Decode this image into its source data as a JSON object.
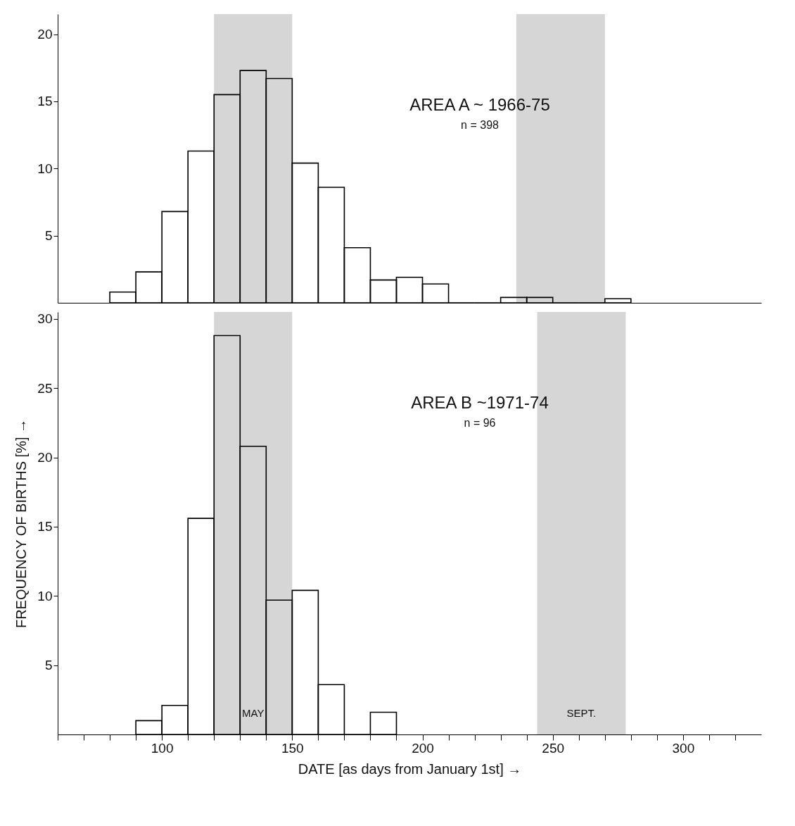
{
  "chart_data": [
    {
      "type": "histogram",
      "color": "#000000",
      "bins": [
        80,
        90,
        100,
        110,
        120,
        130,
        140,
        150,
        160,
        170,
        180,
        190,
        200,
        210,
        220,
        230,
        240,
        250,
        260,
        270,
        280
      ],
      "values": [
        0.8,
        2.3,
        6.8,
        11.3,
        15.5,
        17.3,
        16.7,
        10.4,
        8.6,
        4.1,
        1.7,
        1.9,
        1.4,
        0,
        0,
        0.4,
        0.4,
        0,
        0,
        0.3
      ],
      "xlim": [
        60,
        330
      ],
      "ylim": [
        0,
        21.5
      ],
      "yticks": [
        5,
        10,
        15,
        20
      ],
      "tick_labels": "y",
      "grid": false,
      "bands": [
        {
          "axis": "x",
          "from": 120,
          "to": 150,
          "color": "#cfcfcf"
        },
        {
          "axis": "x",
          "from": 236,
          "to": 270,
          "color": "#cfcfcf"
        }
      ],
      "annotations": [
        "AREA A ~ 1966-75",
        "n = 398"
      ]
    },
    {
      "type": "histogram",
      "color": "#000000",
      "bins": [
        90,
        100,
        110,
        120,
        130,
        140,
        150,
        160,
        170,
        180,
        190
      ],
      "values": [
        1.0,
        2.1,
        15.6,
        28.8,
        20.8,
        9.7,
        10.4,
        3.6,
        0,
        1.6
      ],
      "xlim": [
        60,
        330
      ],
      "ylim": [
        0,
        30.5
      ],
      "yticks": [
        5,
        10,
        15,
        20,
        25,
        30
      ],
      "xticks": [
        {
          "value": 60,
          "label": null
        },
        {
          "value": 70,
          "label": null
        },
        {
          "value": 80,
          "label": null
        },
        {
          "value": 90,
          "label": null
        },
        100,
        {
          "value": 110,
          "label": null
        },
        {
          "value": 120,
          "label": null
        },
        {
          "value": 130,
          "label": null
        },
        {
          "value": 140,
          "label": null
        },
        150,
        {
          "value": 160,
          "label": null
        },
        {
          "value": 170,
          "label": null
        },
        {
          "value": 180,
          "label": null
        },
        {
          "value": 190,
          "label": null
        },
        200,
        {
          "value": 210,
          "label": null
        },
        {
          "value": 220,
          "label": null
        },
        {
          "value": 230,
          "label": null
        },
        {
          "value": 240,
          "label": null
        },
        250,
        {
          "value": 260,
          "label": null
        },
        {
          "value": 270,
          "label": null
        },
        {
          "value": 280,
          "label": null
        },
        {
          "value": 290,
          "label": null
        },
        300,
        {
          "value": 310,
          "label": null
        },
        {
          "value": 320,
          "label": null
        }
      ],
      "xlabel": "DATE [as days from January 1st] →",
      "ylabel": "FREQUENCY OF BIRTHS [%] →",
      "grid": false,
      "bands": [
        {
          "axis": "x",
          "from": 120,
          "to": 150,
          "label": "MAY",
          "color": "#cfcfcf"
        },
        {
          "axis": "x",
          "from": 244,
          "to": 278,
          "label": "SEPT.",
          "color": "#cfcfcf"
        }
      ],
      "annotations": [
        "AREA B ~1971-74",
        "n = 96"
      ]
    }
  ]
}
